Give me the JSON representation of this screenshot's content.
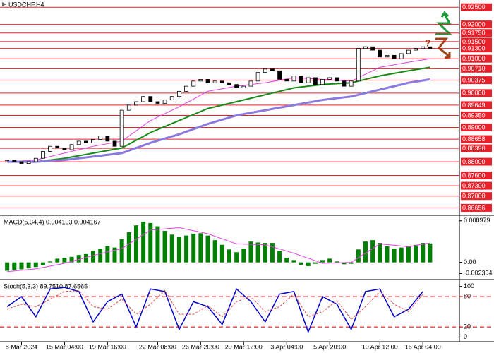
{
  "chart_data": [
    {
      "type": "candlestick",
      "title": "USDCHF,H4",
      "annotation": "?",
      "xlim": [
        -1,
        63
      ],
      "ylim": [
        0.865,
        0.9265
      ],
      "xticks": [
        {
          "value": 2,
          "label": "8 Mar 2024"
        },
        {
          "value": 8,
          "label": "15 Mar 04:00"
        },
        {
          "value": 14,
          "label": "19 Mar 16:00"
        },
        {
          "value": 21,
          "label": "22 Mar 08:00"
        },
        {
          "value": 27,
          "label": "26 Mar 20:00"
        },
        {
          "value": 33,
          "label": "29 Mar 12:00"
        },
        {
          "value": 39,
          "label": "3 Apr 04:00"
        },
        {
          "value": 45,
          "label": "5 Apr 20:00"
        },
        {
          "value": 52,
          "label": "10 Apr 12:00"
        },
        {
          "value": 58,
          "label": "15 Apr 04:00"
        }
      ],
      "levels": [
        {
          "value": 0.925,
          "label": "0.92500"
        },
        {
          "value": 0.92,
          "label": "0.92000"
        },
        {
          "value": 0.9175,
          "label": "0.91750"
        },
        {
          "value": 0.915,
          "label": "0.91500"
        },
        {
          "value": 0.913,
          "label": "0.91300"
        },
        {
          "value": 0.91,
          "label": "0.91000"
        },
        {
          "value": 0.9071,
          "label": "0.90710"
        },
        {
          "value": 0.90375,
          "label": "0.90375"
        },
        {
          "value": 0.9,
          "label": "0.90000"
        },
        {
          "value": 0.89649,
          "label": "0.89649"
        },
        {
          "value": 0.8935,
          "label": "0.89350"
        },
        {
          "value": 0.89,
          "label": "0.89000"
        },
        {
          "value": 0.88658,
          "label": "0.88658"
        },
        {
          "value": 0.8839,
          "label": "0.88390"
        },
        {
          "value": 0.88,
          "label": "0.88000"
        },
        {
          "value": 0.876,
          "label": "0.87600"
        },
        {
          "value": 0.873,
          "label": "0.87300"
        },
        {
          "value": 0.87,
          "label": "0.87000"
        },
        {
          "value": 0.86656,
          "label": "0.86656"
        }
      ],
      "level_color": "#e8202a",
      "up_color": "#ffffff",
      "down_color": "#000000",
      "close": [
        0.8805,
        0.88,
        0.8795,
        0.88,
        0.881,
        0.883,
        0.8845,
        0.884,
        0.8835,
        0.885,
        0.886,
        0.8855,
        0.8865,
        0.8875,
        0.886,
        0.8845,
        0.895,
        0.8965,
        0.8975,
        0.899,
        0.8975,
        0.897,
        0.898,
        0.899,
        0.9005,
        0.902,
        0.9035,
        0.904,
        0.903,
        0.9035,
        0.903,
        0.9025,
        0.9015,
        0.902,
        0.9035,
        0.906,
        0.907,
        0.9065,
        0.904,
        0.9035,
        0.905,
        0.903,
        0.9045,
        0.9025,
        0.904,
        0.9045,
        0.9035,
        0.902,
        0.9035,
        0.913,
        0.9135,
        0.9125,
        0.9105,
        0.911,
        0.91,
        0.9115,
        0.9125,
        0.913,
        0.9135,
        0.913
      ],
      "series": [
        {
          "color": "#e040e0",
          "width": 1,
          "x": [
            0,
            4,
            8,
            12,
            16,
            20,
            24,
            28,
            32,
            36,
            40,
            44,
            48,
            52,
            56,
            59
          ],
          "values": [
            0.88,
            0.8805,
            0.8825,
            0.8845,
            0.886,
            0.892,
            0.896,
            0.9005,
            0.902,
            0.903,
            0.9045,
            0.904,
            0.9035,
            0.9075,
            0.909,
            0.91
          ]
        },
        {
          "color": "#1a8a1a",
          "width": 2,
          "x": [
            0,
            4,
            8,
            12,
            16,
            20,
            24,
            28,
            32,
            36,
            40,
            44,
            48,
            52,
            56,
            59
          ],
          "values": [
            0.88,
            0.88,
            0.881,
            0.8825,
            0.884,
            0.8885,
            0.892,
            0.8955,
            0.8975,
            0.8995,
            0.9015,
            0.9025,
            0.903,
            0.905,
            0.9065,
            0.9075
          ]
        },
        {
          "color": "#8a7ae0",
          "width": 3,
          "x": [
            0,
            4,
            8,
            12,
            16,
            20,
            24,
            28,
            32,
            36,
            40,
            44,
            48,
            52,
            56,
            59
          ],
          "values": [
            0.88,
            0.88,
            0.8805,
            0.8815,
            0.8825,
            0.8855,
            0.888,
            0.891,
            0.8935,
            0.895,
            0.8965,
            0.898,
            0.899,
            0.901,
            0.903,
            0.904
          ]
        }
      ]
    },
    {
      "type": "bar",
      "title": "MACD(5,34,4) 0.004103 0.004167",
      "xlim": [
        -1,
        63
      ],
      "ylim": [
        -0.0031,
        0.0094
      ],
      "yticks": [
        0.008979,
        {
          "value": 0,
          "label": "0.00"
        },
        -0.002394
      ],
      "color": "#008000",
      "values": [
        -0.0018,
        -0.0016,
        -0.0015,
        -0.0013,
        -0.001,
        -0.0006,
        0.0002,
        0.0008,
        0.001,
        0.0012,
        0.0016,
        0.0018,
        0.0025,
        0.003,
        0.0035,
        0.0032,
        0.005,
        0.0065,
        0.008,
        0.0088,
        0.0085,
        0.0078,
        0.0068,
        0.006,
        0.0055,
        0.0058,
        0.0062,
        0.0063,
        0.0058,
        0.0048,
        0.0038,
        0.0028,
        0.0022,
        0.003,
        0.0045,
        0.0043,
        0.0042,
        0.0042,
        0.0025,
        0.001,
        0.0005,
        -0.0005,
        -0.0008,
        -0.0003,
        0.0005,
        0.0008,
        0.0002,
        -0.0004,
        -0.0003,
        0.0028,
        0.0045,
        0.0048,
        0.0042,
        0.0035,
        0.003,
        0.0032,
        0.0035,
        0.0038,
        0.0042,
        0.0041
      ],
      "series": [
        {
          "color": "#e040e0",
          "width": 1,
          "x": [
            0,
            4,
            8,
            12,
            16,
            20,
            24,
            28,
            32,
            36,
            40,
            44,
            48,
            52,
            56,
            59
          ],
          "values": [
            -0.002,
            -0.0014,
            -0.0002,
            0.0015,
            0.003,
            0.007,
            0.0075,
            0.0062,
            0.004,
            0.0038,
            0.002,
            -0.0002,
            0,
            0.004,
            0.0034,
            0.0042
          ]
        }
      ]
    },
    {
      "type": "line",
      "title": "Stoch(5,3,3) 89.7510 87.6565",
      "xlim": [
        -1,
        63
      ],
      "ylim": [
        -5,
        108
      ],
      "yticks": [
        0,
        20,
        80,
        100
      ],
      "levels": [
        20,
        80
      ],
      "level_color": "#cc0000",
      "series": [
        {
          "color": "#0000cc",
          "width": 1.5,
          "x": [
            0,
            2,
            4,
            6,
            8,
            10,
            12,
            14,
            16,
            18,
            20,
            22,
            24,
            26,
            28,
            30,
            32,
            34,
            36,
            38,
            40,
            42,
            44,
            46,
            48,
            50,
            52,
            54,
            56,
            58
          ],
          "values": [
            60,
            80,
            40,
            95,
            98,
            90,
            30,
            70,
            85,
            20,
            95,
            90,
            15,
            70,
            60,
            25,
            95,
            70,
            30,
            85,
            90,
            10,
            80,
            65,
            15,
            90,
            95,
            40,
            55,
            90
          ]
        },
        {
          "color": "#e04040",
          "width": 1,
          "dash": true,
          "x": [
            0,
            2,
            4,
            6,
            8,
            10,
            12,
            14,
            16,
            18,
            20,
            22,
            24,
            26,
            28,
            30,
            32,
            34,
            36,
            38,
            40,
            42,
            44,
            46,
            48,
            50,
            52,
            54,
            56,
            58
          ],
          "values": [
            55,
            65,
            60,
            75,
            90,
            92,
            60,
            55,
            75,
            45,
            65,
            92,
            45,
            45,
            62,
            40,
            70,
            80,
            50,
            60,
            85,
            40,
            50,
            72,
            35,
            60,
            90,
            65,
            50,
            85
          ]
        }
      ]
    }
  ]
}
